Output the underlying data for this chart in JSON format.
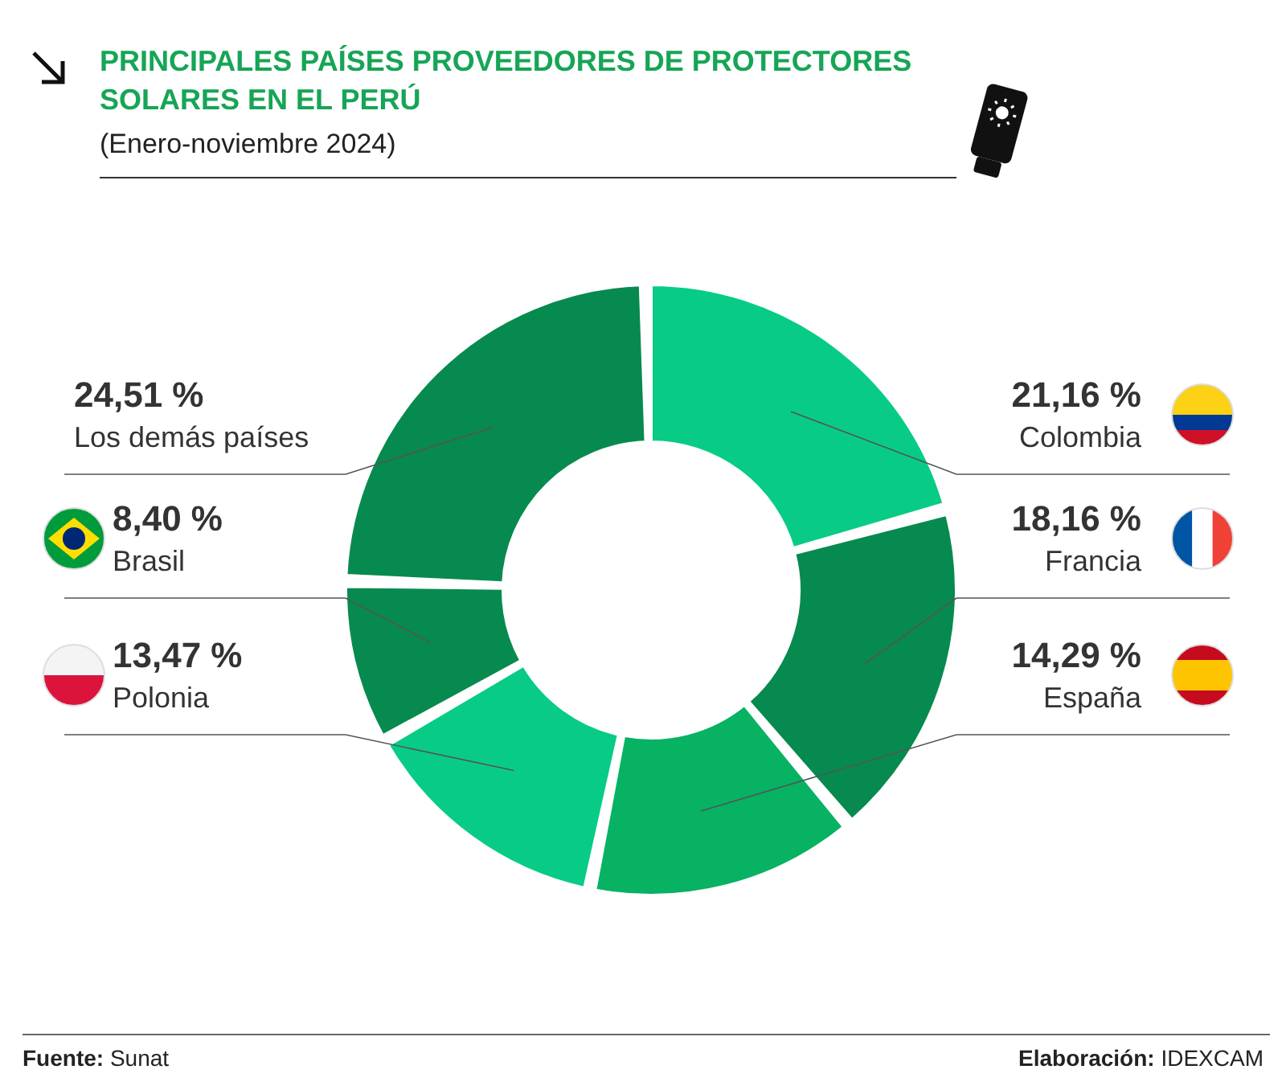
{
  "chart_data": {
    "type": "donut",
    "title": "PRINCIPALES PAÍSES PROVEEDORES DE PROTECTORES SOLARES EN EL PERÚ",
    "subtitle": "(Enero-noviembre 2024)",
    "categories": [
      "Colombia",
      "Francia",
      "España",
      "Polonia",
      "Brasil",
      "Los demás países"
    ],
    "values": [
      21.16,
      18.16,
      14.29,
      13.47,
      8.4,
      24.51
    ],
    "value_labels": [
      "21,16 %",
      "18,16 %",
      "14,29 %",
      "13,47 %",
      "8,40 %",
      "24,51 %"
    ],
    "colors": [
      "#08cc86",
      "#078a4f",
      "#07b263",
      "#08cc86",
      "#078a4f",
      "#078a4f"
    ],
    "annotations": [
      "Fuente: Sunat",
      "Elaboración: IDEXCAM"
    ]
  }
}
